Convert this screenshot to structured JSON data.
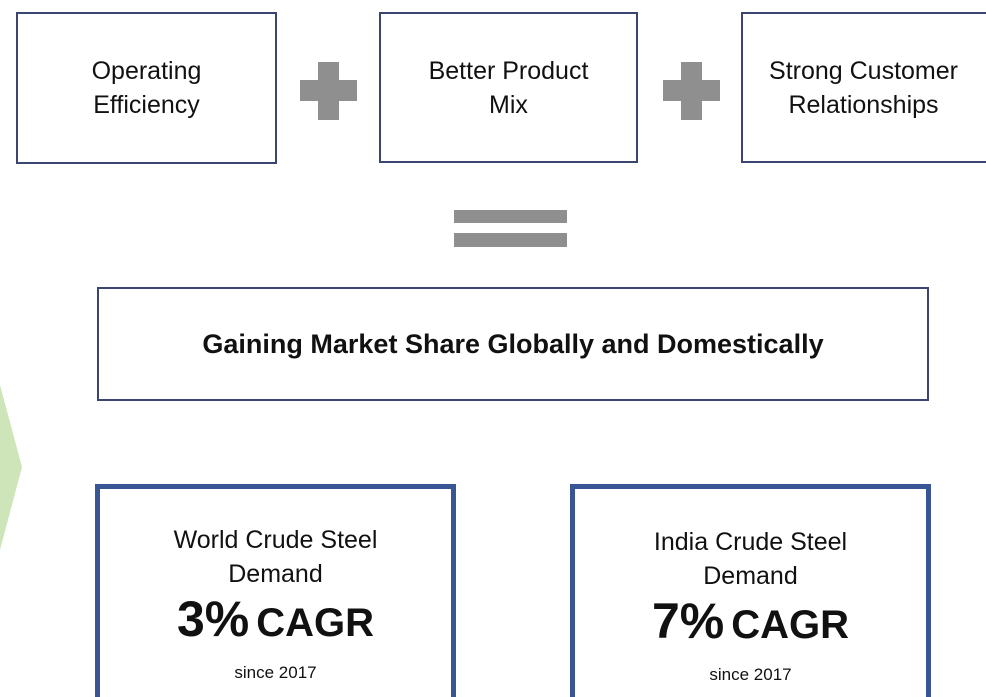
{
  "inputs": [
    {
      "lines": [
        "Operating",
        "Efficiency"
      ]
    },
    {
      "lines": [
        "Better Product",
        "Mix"
      ]
    },
    {
      "lines": [
        "Strong Customer",
        "Relationships"
      ]
    }
  ],
  "result": {
    "text": "Gaining Market Share Globally and Domestically"
  },
  "stats": [
    {
      "lines": [
        "World Crude Steel",
        "Demand"
      ],
      "rate": "3%",
      "unit": "CAGR",
      "since": "since 2017"
    },
    {
      "lines": [
        "India Crude Steel",
        "Demand"
      ],
      "rate": "7%",
      "unit": "CAGR",
      "since": "since 2017"
    }
  ]
}
